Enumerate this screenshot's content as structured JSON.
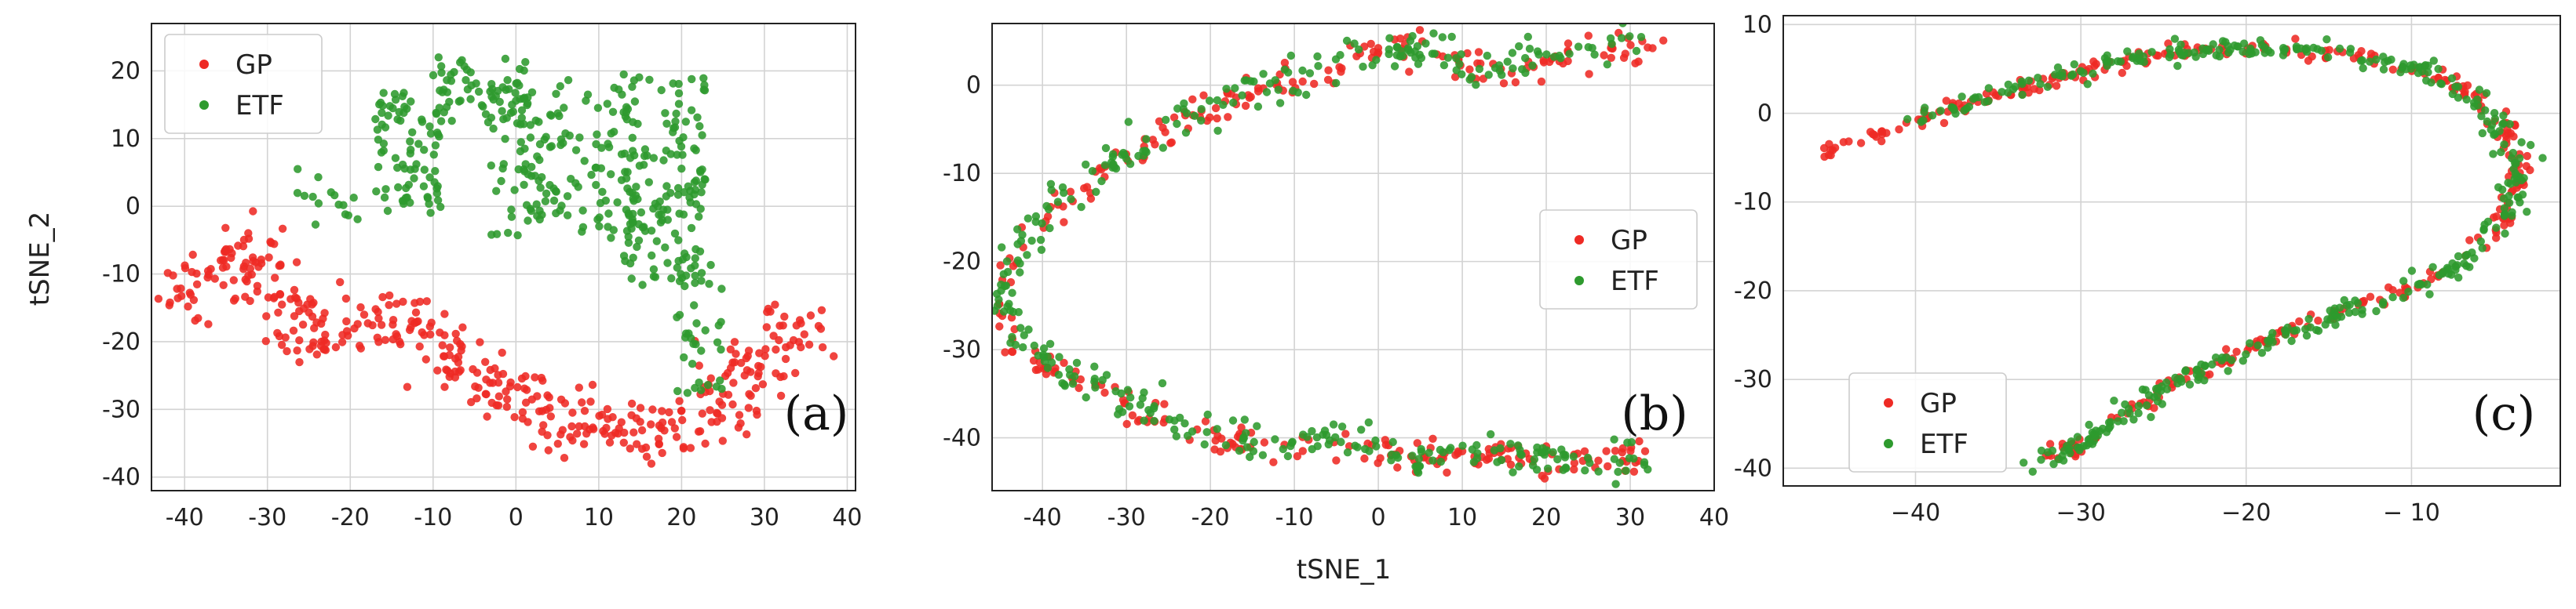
{
  "figure": {
    "shared_xlabel": "tSNE_1",
    "shared_ylabel": "tSNE_2"
  },
  "colors": {
    "GP": "#ee2a24",
    "ETF": "#2e9a2e"
  },
  "chart_data": [
    {
      "type": "scatter",
      "panel_label": "(a)",
      "ylabel": "tSNE_2",
      "xlabel": "",
      "xlim": [
        -44,
        41
      ],
      "ylim": [
        -42,
        27
      ],
      "xticks": [
        -40,
        -30,
        -20,
        -10,
        0,
        10,
        20,
        30,
        40
      ],
      "yticks": [
        -40,
        -30,
        -20,
        -10,
        0,
        10,
        20
      ],
      "legend": {
        "position": "top-left",
        "entries": [
          "GP",
          "ETF"
        ]
      },
      "grid": true,
      "series": [
        {
          "name": "GP",
          "shape": "band",
          "count": 430,
          "spread": 2.6,
          "path": [
            [
              -41,
              -13
            ],
            [
              -37,
              -9
            ],
            [
              -33,
              -6
            ],
            [
              -31,
              -10
            ],
            [
              -28,
              -16
            ],
            [
              -24,
              -20
            ],
            [
              -20,
              -18
            ],
            [
              -16,
              -17
            ],
            [
              -11,
              -19
            ],
            [
              -6,
              -23
            ],
            [
              -2,
              -27
            ],
            [
              2,
              -30
            ],
            [
              6,
              -31
            ],
            [
              10,
              -31
            ],
            [
              14,
              -33
            ],
            [
              18,
              -34
            ],
            [
              22,
              -33
            ],
            [
              25,
              -30
            ],
            [
              28,
              -24
            ],
            [
              32,
              -19
            ],
            [
              36,
              -16
            ]
          ]
        },
        {
          "name": "ETF",
          "shape": "cloud",
          "count": 480,
          "clusters": [
            {
              "cx": -13,
              "cy": 8,
              "rx": 4,
              "ry": 9,
              "n": 80
            },
            {
              "cx": -4,
              "cy": 17,
              "rx": 6,
              "ry": 5,
              "n": 60
            },
            {
              "cx": 6,
              "cy": 7,
              "rx": 9,
              "ry": 12,
              "n": 150
            },
            {
              "cx": 18,
              "cy": 4,
              "rx": 5,
              "ry": 16,
              "n": 140
            },
            {
              "cx": 22,
              "cy": -18,
              "rx": 3,
              "ry": 10,
              "n": 35
            },
            {
              "cx": -23,
              "cy": 2,
              "rx": 4,
              "ry": 5,
              "n": 15
            }
          ]
        }
      ]
    },
    {
      "type": "scatter",
      "panel_label": "(b)",
      "ylabel": "",
      "xlabel": "tSNE_1",
      "xlim": [
        -46,
        40
      ],
      "ylim": [
        -46,
        7
      ],
      "xticks": [
        -40,
        -30,
        -20,
        -10,
        0,
        10,
        20,
        30,
        40
      ],
      "yticks": [
        -40,
        -30,
        -20,
        -10,
        0
      ],
      "legend": {
        "position": "center-right",
        "entries": [
          "GP",
          "ETF"
        ]
      },
      "grid": true,
      "series": [
        {
          "name": "GP",
          "shape": "band",
          "count": 330,
          "spread": 0.9,
          "path": [
            [
              34,
              3.5
            ],
            [
              28,
              4
            ],
            [
              22,
              3
            ],
            [
              16,
              1.5
            ],
            [
              12,
              1.5
            ],
            [
              8,
              3
            ],
            [
              3,
              4
            ],
            [
              -1,
              4
            ],
            [
              -6,
              1.5
            ],
            [
              -12,
              0
            ],
            [
              -18,
              -2
            ],
            [
              -24,
              -5
            ],
            [
              -30,
              -8
            ],
            [
              -36,
              -12
            ],
            [
              -42,
              -18
            ],
            [
              -45,
              -23
            ],
            [
              -44,
              -29
            ],
            [
              -38,
              -33
            ],
            [
              -32,
              -35
            ],
            [
              -25,
              -38
            ],
            [
              -18,
              -40
            ],
            [
              -10,
              -40.5
            ],
            [
              -2,
              -41
            ],
            [
              6,
              -42
            ],
            [
              14,
              -42
            ],
            [
              22,
              -42.5
            ],
            [
              28,
              -43
            ],
            [
              33,
              -42.5
            ]
          ]
        },
        {
          "name": "ETF",
          "shape": "band",
          "count": 380,
          "spread": 1.1,
          "path": [
            [
              30,
              4
            ],
            [
              22,
              3.5
            ],
            [
              14,
              1.5
            ],
            [
              8,
              3
            ],
            [
              2,
              4
            ],
            [
              -4,
              3
            ],
            [
              -10,
              0.5
            ],
            [
              -18,
              -2
            ],
            [
              -26,
              -5
            ],
            [
              -32,
              -9
            ],
            [
              -38,
              -13
            ],
            [
              -43,
              -18
            ],
            [
              -45,
              -24
            ],
            [
              -43,
              -29
            ],
            [
              -37,
              -33
            ],
            [
              -30,
              -36
            ],
            [
              -22,
              -39
            ],
            [
              -14,
              -40
            ],
            [
              -6,
              -40.5
            ],
            [
              2,
              -41.5
            ],
            [
              10,
              -42
            ],
            [
              18,
              -42
            ],
            [
              26,
              -42.5
            ],
            [
              32,
              -43
            ]
          ]
        }
      ]
    },
    {
      "type": "scatter",
      "panel_label": "(c)",
      "ylabel": "",
      "xlabel": "",
      "xlim": [
        -48,
        -1
      ],
      "ylim": [
        -42,
        11
      ],
      "xticks": [
        -40,
        -30,
        -20,
        -10
      ],
      "xticklabels": [
        "−40",
        "−30",
        "−20",
        "− 10"
      ],
      "yticks": [
        -40,
        -30,
        -20,
        -10,
        0,
        10
      ],
      "legend": {
        "position": "bottom-left",
        "entries": [
          "GP",
          "ETF"
        ]
      },
      "grid": true,
      "series": [
        {
          "name": "GP",
          "shape": "band",
          "count": 340,
          "spread": 0.45,
          "path": [
            [
              -46,
              -4.5
            ],
            [
              -43,
              -3
            ],
            [
              -40,
              -1
            ],
            [
              -36,
              1.5
            ],
            [
              -32,
              4
            ],
            [
              -28,
              5.5
            ],
            [
              -24,
              7
            ],
            [
              -20,
              7.5
            ],
            [
              -16,
              7
            ],
            [
              -12,
              6
            ],
            [
              -8,
              4
            ],
            [
              -5,
              0
            ],
            [
              -3.5,
              -6
            ],
            [
              -4.5,
              -12
            ],
            [
              -7,
              -17
            ],
            [
              -12,
              -21
            ],
            [
              -18,
              -25
            ],
            [
              -24,
              -30
            ],
            [
              -28,
              -35
            ],
            [
              -32,
              -39
            ]
          ]
        },
        {
          "name": "ETF",
          "shape": "band",
          "count": 400,
          "spread": 0.55,
          "path": [
            [
              -40,
              -1
            ],
            [
              -36,
              1.5
            ],
            [
              -32,
              4
            ],
            [
              -28,
              5.5
            ],
            [
              -24,
              7
            ],
            [
              -20,
              7.5
            ],
            [
              -16,
              7
            ],
            [
              -12,
              6
            ],
            [
              -8,
              4
            ],
            [
              -5,
              0
            ],
            [
              -3.5,
              -6
            ],
            [
              -4.5,
              -12
            ],
            [
              -7,
              -17
            ],
            [
              -12,
              -21
            ],
            [
              -18,
              -25
            ],
            [
              -24,
              -30
            ],
            [
              -29,
              -36
            ],
            [
              -33,
              -40
            ]
          ]
        }
      ]
    }
  ]
}
